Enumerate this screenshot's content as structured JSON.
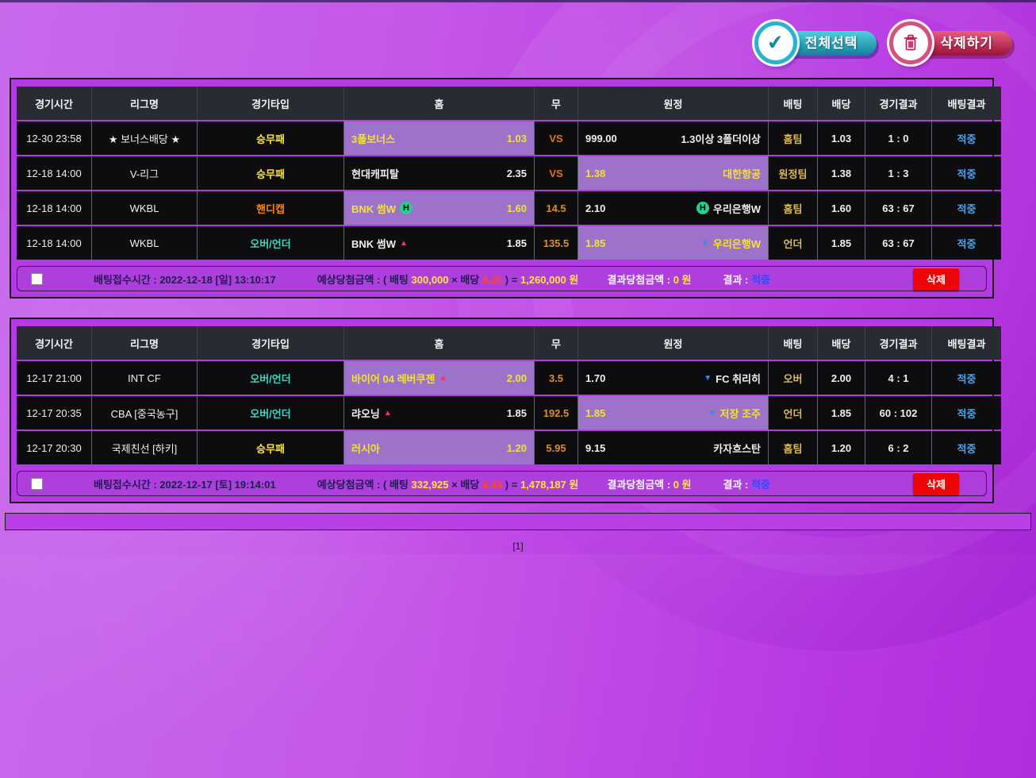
{
  "toolbar": {
    "select_all": "전체선택",
    "delete_all": "삭제하기"
  },
  "columns": [
    "경기시간",
    "리그명",
    "경기타입",
    "홈",
    "무",
    "원정",
    "배팅",
    "배당",
    "경기결과",
    "배팅결과"
  ],
  "footer_labels": {
    "receipt_time": "배팅접수시간 :",
    "expect_prefix": "예상당첨금액 : ( 배팅",
    "expect_times": "× 배당",
    "expect_equals": ") =",
    "won": "원",
    "result_amount": "결과당첨금액 :",
    "result": "결과 :",
    "delete": "삭제"
  },
  "palette": {
    "type_win_draw_lose": "#ffe636",
    "type_handicap": "#ef8722",
    "type_over_under": "#3cd9c3",
    "vs_orange": "#e2731e",
    "draw_number_orange": "#d8902e",
    "bet_gold": "#dcb959",
    "hit_blue": "#4aa4f0",
    "footer_hit_blue": "#2b4bff",
    "highlight_bg": "#9d72cb",
    "highlight_text_yellow": "#f2e235",
    "up_triangle": "#f2335f",
    "down_triangle": "#2f8cf5"
  },
  "tickets": [
    {
      "rows": [
        {
          "time": "12-30 23:58",
          "league": "★ 보너스배당 ★",
          "type": "승무패",
          "type_color": "#ffe636",
          "home": {
            "name": "3폴보너스",
            "odds": "1.03",
            "marker": null,
            "h_icon": false,
            "highlight": true
          },
          "draw": {
            "label": "VS",
            "color": "#e2731e"
          },
          "away": {
            "odds": "999.00",
            "name": "1.3이상 3폴더이상",
            "marker": null,
            "h_icon": false,
            "highlight": false
          },
          "bet": "홈팀",
          "pay": "1.03",
          "score": "1 : 0",
          "result": "적중"
        },
        {
          "time": "12-18 14:00",
          "league": "V-리그",
          "type": "승무패",
          "type_color": "#ffe636",
          "home": {
            "name": "현대캐피탈",
            "odds": "2.35",
            "marker": null,
            "h_icon": false,
            "highlight": false
          },
          "draw": {
            "label": "VS",
            "color": "#e2731e"
          },
          "away": {
            "odds": "1.38",
            "name": "대한항공",
            "marker": null,
            "h_icon": false,
            "highlight": true
          },
          "bet": "원정팀",
          "pay": "1.38",
          "score": "1 : 3",
          "result": "적중"
        },
        {
          "time": "12-18 14:00",
          "league": "WKBL",
          "type": "핸디캡",
          "type_color": "#ef8722",
          "home": {
            "name": "BNK 썸W",
            "odds": "1.60",
            "marker": null,
            "h_icon": true,
            "highlight": true
          },
          "draw": {
            "label": "14.5",
            "color": "#d8902e"
          },
          "away": {
            "odds": "2.10",
            "name": "우리은행W",
            "marker": null,
            "h_icon": true,
            "highlight": false
          },
          "bet": "홈팀",
          "pay": "1.60",
          "score": "63 : 67",
          "result": "적중"
        },
        {
          "time": "12-18 14:00",
          "league": "WKBL",
          "type": "오버/언더",
          "type_color": "#3cd9c3",
          "home": {
            "name": "BNK 썸W",
            "odds": "1.85",
            "marker": "up",
            "h_icon": false,
            "highlight": false
          },
          "draw": {
            "label": "135.5",
            "color": "#d8902e"
          },
          "away": {
            "odds": "1.85",
            "name": "우리은행W",
            "marker": "down",
            "h_icon": false,
            "highlight": true
          },
          "bet": "언더",
          "pay": "1.85",
          "score": "63 : 67",
          "result": "적중"
        }
      ],
      "footer": {
        "receipt_time": "2022-12-18 [일] 13:10:17",
        "bet_amount": "300,000",
        "total_odds": "4.20",
        "expected_win": "1,260,000",
        "result_amount": "0",
        "result": "적중"
      }
    },
    {
      "rows": [
        {
          "time": "12-17 21:00",
          "league": "INT CF",
          "type": "오버/언더",
          "type_color": "#3cd9c3",
          "home": {
            "name": "바이어 04 레버쿠젠",
            "odds": "2.00",
            "marker": "up",
            "h_icon": false,
            "highlight": true
          },
          "draw": {
            "label": "3.5",
            "color": "#d8902e"
          },
          "away": {
            "odds": "1.70",
            "name": "FC 취리히",
            "marker": "down",
            "h_icon": false,
            "highlight": false
          },
          "bet": "오버",
          "pay": "2.00",
          "score": "4 : 1",
          "result": "적중"
        },
        {
          "time": "12-17 20:35",
          "league": "CBA [중국농구]",
          "type": "오버/언더",
          "type_color": "#3cd9c3",
          "home": {
            "name": "랴오닝",
            "odds": "1.85",
            "marker": "up",
            "h_icon": false,
            "highlight": false
          },
          "draw": {
            "label": "192.5",
            "color": "#d8902e"
          },
          "away": {
            "odds": "1.85",
            "name": "저장 조주",
            "marker": "down",
            "h_icon": false,
            "highlight": true
          },
          "bet": "언더",
          "pay": "1.85",
          "score": "60 : 102",
          "result": "적중"
        },
        {
          "time": "12-17 20:30",
          "league": "국제친선 [하키]",
          "type": "승무패",
          "type_color": "#ffe636",
          "home": {
            "name": "러시아",
            "odds": "1.20",
            "marker": null,
            "h_icon": false,
            "highlight": true
          },
          "draw": {
            "label": "5.95",
            "color": "#d8902e"
          },
          "away": {
            "odds": "9.15",
            "name": "카자흐스탄",
            "marker": null,
            "h_icon": false,
            "highlight": false
          },
          "bet": "홈팀",
          "pay": "1.20",
          "score": "6 : 2",
          "result": "적중"
        }
      ],
      "footer": {
        "receipt_time": "2022-12-17 [토] 19:14:01",
        "bet_amount": "332,925",
        "total_odds": "4.44",
        "expected_win": "1,478,187",
        "result_amount": "0",
        "result": "적중"
      }
    }
  ],
  "pagination": "[1]"
}
